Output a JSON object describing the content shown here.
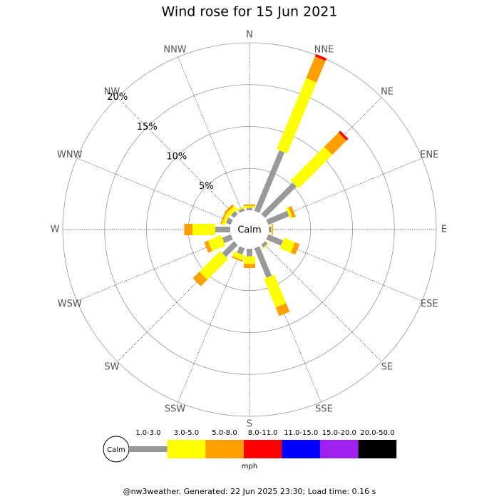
{
  "chart_data": {
    "type": "wind_rose",
    "title": "Wind rose for 15 Jun 2021",
    "directions": [
      "N",
      "NNE",
      "NE",
      "ENE",
      "E",
      "ESE",
      "SE",
      "SSE",
      "S",
      "SSW",
      "SW",
      "WSW",
      "W",
      "WNW",
      "NW",
      "NNW"
    ],
    "calm_label": "Calm",
    "unit": "mph",
    "footer": "@nw3weather. Generated: 22 Jun 2025 23:30; Load time: 0.16 s",
    "rlim": [
      0,
      20
    ],
    "rticks": [
      {
        "value": 5,
        "label": "5%"
      },
      {
        "value": 10,
        "label": "10%"
      },
      {
        "value": 15,
        "label": "15%"
      },
      {
        "value": 20,
        "label": "20%"
      }
    ],
    "series": [
      {
        "name": "1.0-3.0",
        "color": "#999999",
        "values": [
          0.3,
          7.8,
          5.3,
          2.7,
          0.3,
          1.9,
          0.4,
          3.8,
          0.9,
          0.8,
          2.0,
          1.1,
          1.8,
          0.6,
          0.5,
          0.3
        ]
      },
      {
        "name": "3.0-5.0",
        "color": "#ffff00",
        "values": [
          0.2,
          9.2,
          5.7,
          0.3,
          0.1,
          1.4,
          0.1,
          3.7,
          0.9,
          0.6,
          3.5,
          1.7,
          2.7,
          0.4,
          0.5,
          0.2
        ]
      },
      {
        "name": "5.0-8.0",
        "color": "#ff9f00",
        "values": [
          0.2,
          2.8,
          2.4,
          0.4,
          0.1,
          0.6,
          0,
          1.1,
          0.5,
          0.2,
          1.1,
          0.5,
          1.0,
          0.2,
          0.3,
          0
        ]
      },
      {
        "name": "8.0-11.0",
        "color": "#ff0000",
        "values": [
          0,
          0.3,
          0.3,
          0,
          0,
          0,
          0,
          0,
          0,
          0,
          0,
          0,
          0,
          0,
          0,
          0
        ]
      },
      {
        "name": "11.0-15.0",
        "color": "#0000ff",
        "values": [
          0,
          0,
          0,
          0,
          0,
          0,
          0,
          0,
          0,
          0,
          0,
          0,
          0,
          0,
          0,
          0
        ]
      },
      {
        "name": "15.0-20.0",
        "color": "#a020f0",
        "values": [
          0,
          0,
          0,
          0,
          0,
          0,
          0,
          0,
          0,
          0,
          0,
          0,
          0,
          0,
          0,
          0
        ]
      },
      {
        "name": "20.0-50.0",
        "color": "#000000",
        "values": [
          0,
          0,
          0,
          0,
          0,
          0,
          0,
          0,
          0,
          0,
          0,
          0,
          0,
          0,
          0,
          0
        ]
      }
    ]
  }
}
